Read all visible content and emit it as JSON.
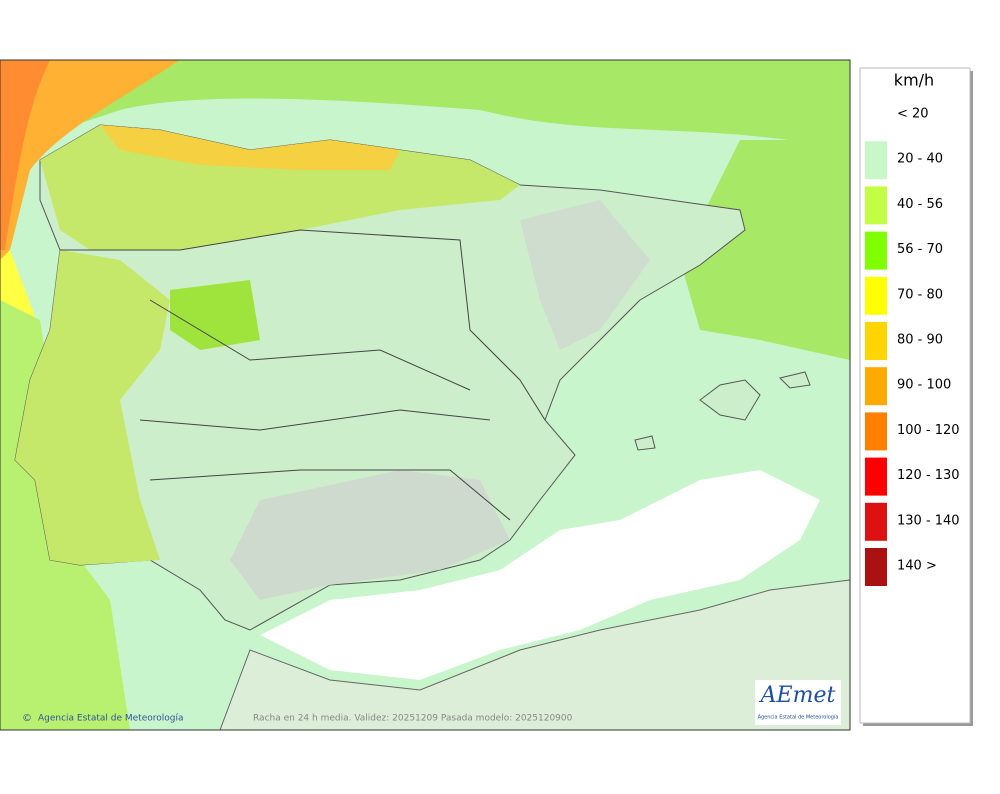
{
  "legend": {
    "title": "km/h",
    "items": [
      {
        "label": "< 20"
      },
      {
        "label": "20 - 40",
        "color": "#c8f7c8"
      },
      {
        "label": "40 - 56",
        "color": "#c2ff44"
      },
      {
        "label": "56 - 70",
        "color": "#80ff00"
      },
      {
        "label": "70 - 80",
        "color": "#ffff00"
      },
      {
        "label": "80 - 90",
        "color": "#ffd500"
      },
      {
        "label": "90 - 100",
        "color": "#ffaa00"
      },
      {
        "label": "100 - 120",
        "color": "#ff8000"
      },
      {
        "label": "120 - 130",
        "color": "#ff0000"
      },
      {
        "label": "130 - 140",
        "color": "#dd1111"
      },
      {
        "label": "140 >",
        "color": "#aa1111"
      }
    ]
  },
  "footer": {
    "credit": "Agencia Estatal de Meteorología",
    "caption": "Racha en 24 h media. Validez: 20251209 Pasada modelo: 2025120900"
  },
  "logo": {
    "name": "AEmet",
    "subtitle": "Agencia Estatal de Meteorología"
  }
}
